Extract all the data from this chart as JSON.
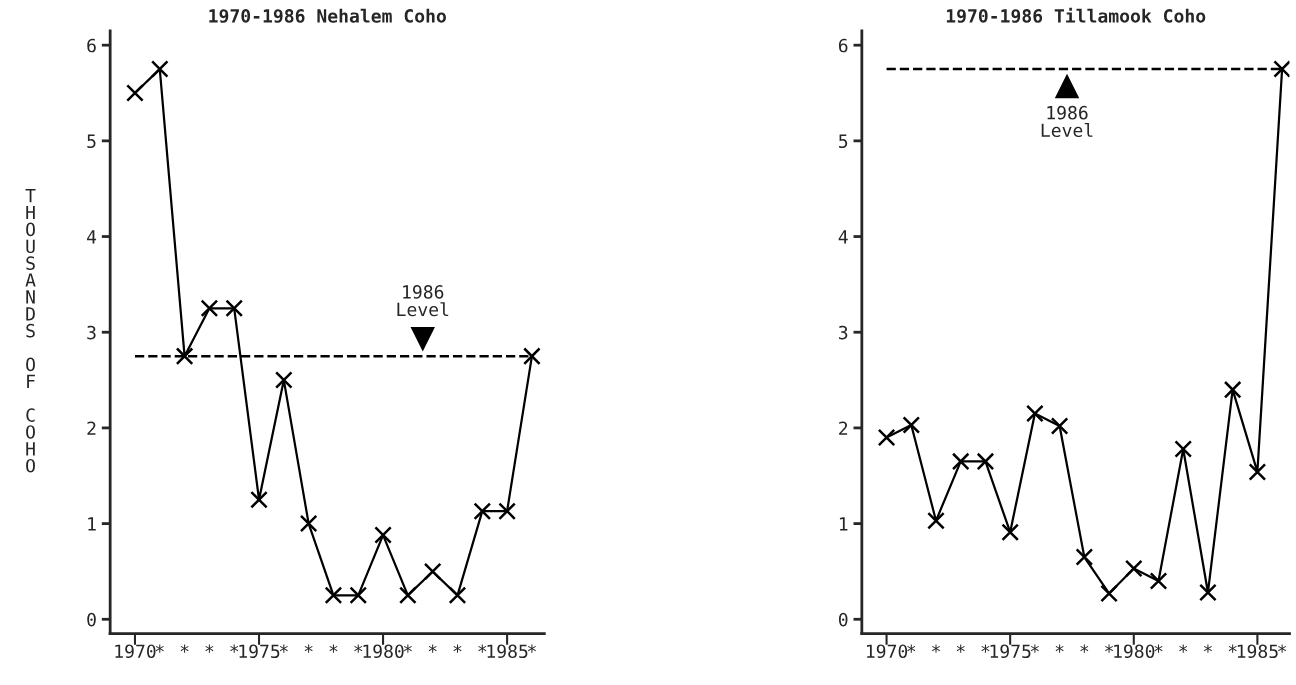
{
  "chart_data": [
    {
      "type": "line",
      "title": "1970-1986 Nehalem Coho",
      "ylabel": "THOUSANDS OF COHO",
      "x": [
        1970,
        1971,
        1972,
        1973,
        1974,
        1975,
        1976,
        1977,
        1978,
        1979,
        1980,
        1981,
        1982,
        1983,
        1984,
        1985,
        1986
      ],
      "series": [
        {
          "color": "#000000",
          "values": [
            5.5,
            5.75,
            2.75,
            3.25,
            3.25,
            1.25,
            2.5,
            1.0,
            0.25,
            0.25,
            0.88,
            0.25,
            0.5,
            0.25,
            1.13,
            1.13,
            2.75
          ]
        }
      ],
      "marker": "cross",
      "line_style": "solid",
      "grid": false,
      "legend": false,
      "xlim": [
        1969,
        1986.5
      ],
      "ylim": [
        -0.15,
        6.15
      ],
      "yticks": [
        0,
        1,
        2,
        3,
        4,
        5,
        6
      ],
      "xticks": [
        1970,
        {
          "value": 1971,
          "label": "*"
        },
        {
          "value": 1972,
          "label": "*"
        },
        {
          "value": 1973,
          "label": "*"
        },
        {
          "value": 1974,
          "label": "*"
        },
        1975,
        {
          "value": 1976,
          "label": "*"
        },
        {
          "value": 1977,
          "label": "*"
        },
        {
          "value": 1978,
          "label": "*"
        },
        {
          "value": 1979,
          "label": "*"
        },
        1980,
        {
          "value": 1981,
          "label": "*"
        },
        {
          "value": 1982,
          "label": "*"
        },
        {
          "value": 1983,
          "label": "*"
        },
        {
          "value": 1984,
          "label": "*"
        },
        1985,
        {
          "value": 1986,
          "label": "*"
        }
      ],
      "ref_lines": [
        {
          "axis": "y",
          "value": 2.75,
          "line_style": "dashed",
          "color": "#000000"
        }
      ],
      "annotations": [
        {
          "text": "1986\nLevel",
          "x": 1981.6,
          "y": 2.75
        }
      ]
    },
    {
      "type": "line",
      "title": "1970-1986 Tillamook Coho",
      "x": [
        1970,
        1971,
        1972,
        1973,
        1974,
        1975,
        1976,
        1977,
        1978,
        1979,
        1980,
        1981,
        1982,
        1983,
        1984,
        1985,
        1986
      ],
      "series": [
        {
          "color": "#000000",
          "values": [
            1.9,
            2.03,
            1.03,
            1.65,
            1.65,
            0.91,
            2.15,
            2.02,
            0.65,
            0.27,
            0.53,
            0.4,
            1.78,
            0.28,
            2.4,
            1.54,
            5.75
          ]
        }
      ],
      "marker": "cross",
      "line_style": "solid",
      "grid": false,
      "legend": false,
      "xlim": [
        1969,
        1986.3
      ],
      "ylim": [
        -0.15,
        6.15
      ],
      "yticks": [
        0,
        1,
        2,
        3,
        4,
        5,
        6
      ],
      "xticks": [
        1970,
        {
          "value": 1971,
          "label": "*"
        },
        {
          "value": 1972,
          "label": "*"
        },
        {
          "value": 1973,
          "label": "*"
        },
        {
          "value": 1974,
          "label": "*"
        },
        1975,
        {
          "value": 1976,
          "label": "*"
        },
        {
          "value": 1977,
          "label": "*"
        },
        {
          "value": 1978,
          "label": "*"
        },
        {
          "value": 1979,
          "label": "*"
        },
        1980,
        {
          "value": 1981,
          "label": "*"
        },
        {
          "value": 1982,
          "label": "*"
        },
        {
          "value": 1983,
          "label": "*"
        },
        {
          "value": 1984,
          "label": "*"
        },
        1985,
        {
          "value": 1986,
          "label": "*"
        }
      ],
      "ref_lines": [
        {
          "axis": "y",
          "value": 5.75,
          "line_style": "dashed",
          "color": "#000000"
        }
      ],
      "annotations": [
        {
          "text": "1986\nLevel",
          "x": 1977.3,
          "y": 5.75
        }
      ]
    }
  ]
}
